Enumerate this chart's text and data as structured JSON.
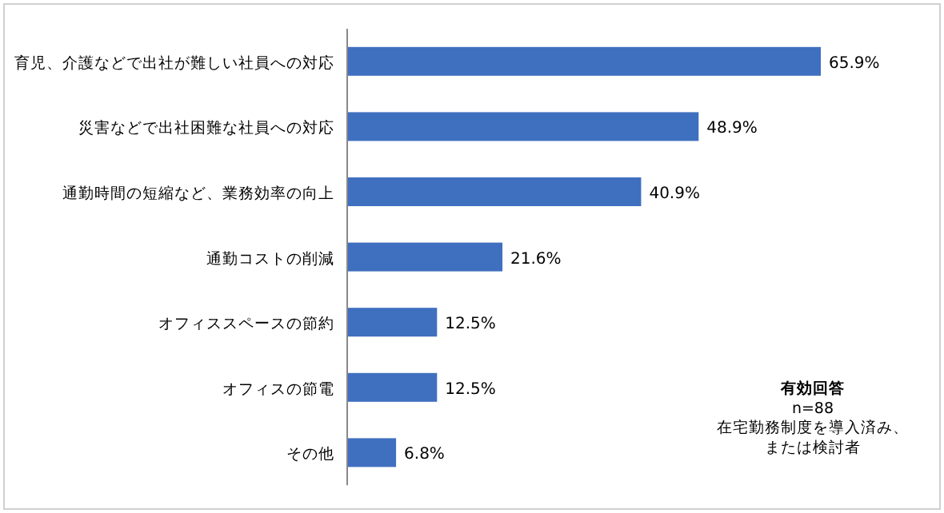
{
  "chart_data": {
    "type": "bar",
    "orientation": "horizontal",
    "color": "#3f6fbf",
    "categories": [
      "育児、介護などで出社が難しい社員への対応",
      "災害などで出社困難な社員への対応",
      "通勤時間の短縮など、業務効率の向上",
      "通勤コストの削減",
      "オフィススペースの節約",
      "オフィスの節電",
      "その他"
    ],
    "values": [
      65.9,
      48.9,
      40.9,
      21.6,
      12.5,
      12.5,
      6.8
    ],
    "value_labels": [
      "65.9%",
      "48.9%",
      "40.9%",
      "21.6%",
      "12.5%",
      "12.5%",
      "6.8%"
    ],
    "annotations": [
      "有効回答",
      "n=88",
      "在宅勤務制度を導入済み、",
      "または検討者"
    ]
  }
}
